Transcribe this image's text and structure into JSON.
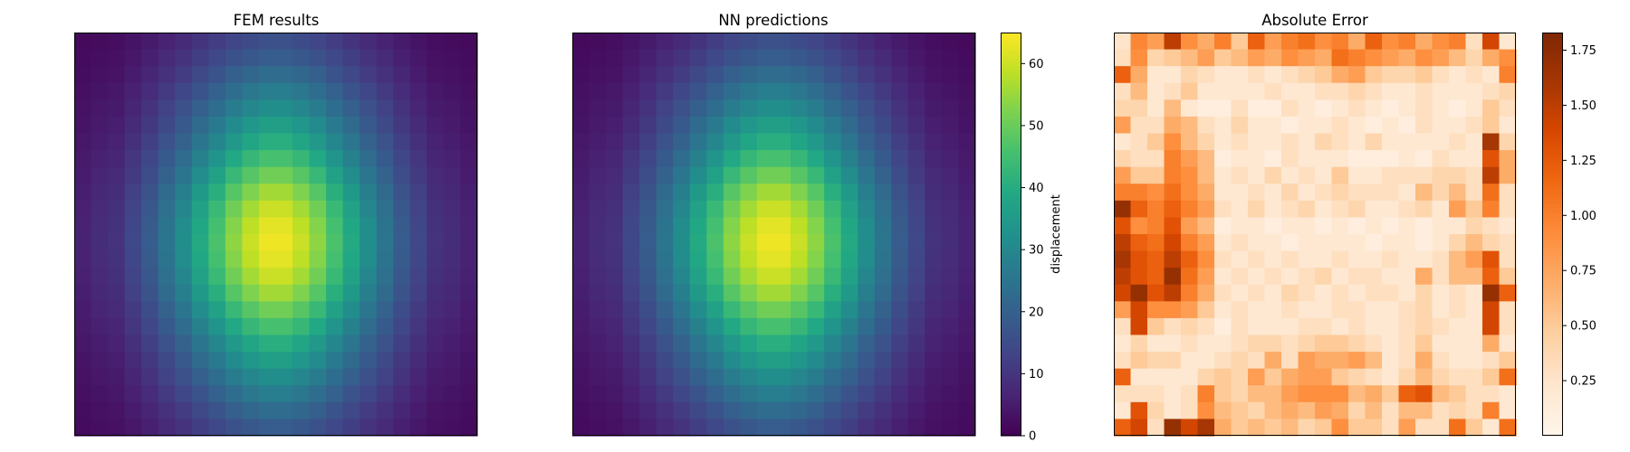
{
  "chart_data": [
    {
      "type": "heatmap",
      "title": "FEM results",
      "grid_size": 24,
      "model": "separable",
      "x_profile": [
        0.1,
        0.13,
        0.15,
        0.22,
        0.3,
        0.4,
        0.5,
        0.62,
        0.73,
        0.85,
        0.94,
        1.0,
        1.0,
        0.94,
        0.85,
        0.73,
        0.62,
        0.5,
        0.4,
        0.3,
        0.22,
        0.15,
        0.13,
        0.1
      ],
      "y_profile": [
        0.25,
        0.3,
        0.36,
        0.43,
        0.5,
        0.57,
        0.64,
        0.72,
        0.8,
        0.88,
        0.94,
        0.98,
        1.0,
        0.98,
        0.94,
        0.88,
        0.8,
        0.72,
        0.64,
        0.57,
        0.5,
        0.43,
        0.36,
        0.3
      ],
      "vmin": 0,
      "vmax": 65,
      "peak_value": 63.5,
      "colormap": "viridis",
      "axes_visible": false
    },
    {
      "type": "heatmap",
      "title": "NN predictions",
      "grid_size": 24,
      "model": "separable",
      "x_profile": [
        0.1,
        0.13,
        0.15,
        0.22,
        0.3,
        0.4,
        0.5,
        0.62,
        0.73,
        0.85,
        0.94,
        1.0,
        1.0,
        0.94,
        0.85,
        0.73,
        0.62,
        0.5,
        0.4,
        0.3,
        0.22,
        0.15,
        0.13,
        0.1
      ],
      "y_profile": [
        0.25,
        0.3,
        0.36,
        0.43,
        0.5,
        0.57,
        0.64,
        0.72,
        0.8,
        0.88,
        0.94,
        0.98,
        1.0,
        0.98,
        0.94,
        0.88,
        0.8,
        0.72,
        0.64,
        0.57,
        0.5,
        0.43,
        0.36,
        0.3
      ],
      "vmin": 0,
      "vmax": 65,
      "peak_value": 63.5,
      "colormap": "viridis",
      "axes_visible": false,
      "colorbar": {
        "label": "displacement",
        "ticks": [
          0,
          10,
          20,
          30,
          40,
          50,
          60
        ],
        "range": [
          0,
          65
        ]
      }
    },
    {
      "type": "heatmap",
      "title": "Absolute Error",
      "grid_size": 24,
      "vmin": 0,
      "vmax": 1.83,
      "colormap": "oranges",
      "axes_visible": false,
      "values": [
        [
          0.25,
          0.95,
          0.8,
          1.5,
          0.9,
          0.7,
          1.0,
          0.5,
          1.2,
          0.8,
          1.0,
          1.1,
          0.9,
          1.0,
          0.7,
          1.2,
          0.9,
          1.0,
          0.7,
          0.9,
          1.0,
          0.3,
          1.4,
          0.2
        ],
        [
          0.3,
          0.9,
          0.4,
          0.5,
          0.6,
          0.8,
          0.5,
          0.6,
          0.8,
          0.7,
          0.9,
          0.8,
          0.7,
          1.1,
          1.0,
          0.9,
          0.8,
          0.7,
          0.9,
          0.8,
          0.6,
          0.4,
          0.7,
          0.9
        ],
        [
          1.2,
          0.7,
          0.2,
          0.2,
          0.4,
          0.3,
          0.2,
          0.2,
          0.3,
          0.2,
          0.3,
          0.4,
          0.5,
          0.7,
          0.8,
          0.5,
          0.4,
          0.4,
          0.5,
          0.3,
          0.2,
          0.3,
          0.2,
          1.0
        ],
        [
          0.3,
          0.6,
          0.2,
          0.3,
          0.5,
          0.2,
          0.2,
          0.2,
          0.2,
          0.3,
          0.2,
          0.2,
          0.3,
          0.3,
          0.4,
          0.3,
          0.2,
          0.2,
          0.3,
          0.2,
          0.2,
          0.2,
          0.3,
          0.4
        ],
        [
          0.4,
          0.4,
          0.2,
          0.6,
          0.2,
          0.1,
          0.1,
          0.3,
          0.1,
          0.1,
          0.3,
          0.2,
          0.1,
          0.2,
          0.3,
          0.2,
          0.1,
          0.2,
          0.3,
          0.2,
          0.1,
          0.2,
          0.5,
          0.3
        ],
        [
          0.8,
          0.3,
          0.3,
          0.7,
          0.6,
          0.3,
          0.2,
          0.4,
          0.2,
          0.2,
          0.1,
          0.2,
          0.2,
          0.3,
          0.2,
          0.1,
          0.2,
          0.1,
          0.3,
          0.2,
          0.2,
          0.3,
          0.5,
          0.2
        ],
        [
          0.2,
          0.3,
          0.5,
          0.9,
          0.6,
          0.4,
          0.2,
          0.3,
          0.2,
          0.2,
          0.3,
          0.2,
          0.4,
          0.3,
          0.2,
          0.4,
          0.2,
          0.2,
          0.2,
          0.2,
          0.3,
          0.2,
          1.6,
          0.4
        ],
        [
          0.4,
          0.3,
          0.3,
          1.0,
          0.8,
          0.6,
          0.1,
          0.2,
          0.2,
          0.1,
          0.3,
          0.2,
          0.2,
          0.2,
          0.1,
          0.1,
          0.1,
          0.2,
          0.1,
          0.3,
          0.2,
          0.2,
          1.3,
          0.7
        ],
        [
          0.8,
          0.5,
          0.5,
          1.0,
          0.9,
          0.6,
          0.2,
          0.3,
          0.2,
          0.4,
          0.2,
          0.3,
          0.2,
          0.5,
          0.2,
          0.2,
          0.3,
          0.3,
          0.3,
          0.4,
          0.4,
          0.3,
          1.5,
          0.7
        ],
        [
          1.0,
          1.0,
          0.9,
          1.1,
          0.9,
          0.7,
          0.2,
          0.2,
          0.3,
          0.2,
          0.4,
          0.2,
          0.3,
          0.4,
          0.3,
          0.3,
          0.3,
          0.2,
          0.6,
          0.4,
          0.6,
          0.3,
          1.1,
          0.3
        ],
        [
          1.7,
          1.2,
          1.0,
          1.2,
          1.0,
          0.8,
          0.3,
          0.2,
          0.4,
          0.2,
          0.3,
          0.4,
          0.2,
          0.3,
          0.4,
          0.2,
          0.2,
          0.3,
          0.4,
          0.2,
          0.8,
          0.5,
          1.0,
          0.3
        ],
        [
          1.3,
          0.9,
          1.0,
          1.3,
          0.8,
          0.6,
          0.1,
          0.2,
          0.2,
          0.1,
          0.2,
          0.2,
          0.1,
          0.2,
          0.1,
          0.2,
          0.1,
          0.2,
          0.1,
          0.2,
          0.2,
          0.4,
          0.3,
          0.2
        ],
        [
          1.5,
          1.2,
          1.1,
          1.4,
          1.0,
          0.8,
          0.2,
          0.3,
          0.2,
          0.2,
          0.1,
          0.2,
          0.2,
          0.2,
          0.2,
          0.1,
          0.2,
          0.2,
          0.1,
          0.2,
          0.4,
          0.6,
          0.4,
          0.3
        ],
        [
          1.6,
          1.3,
          1.2,
          1.5,
          1.2,
          0.9,
          0.3,
          0.2,
          0.3,
          0.2,
          0.3,
          0.2,
          0.2,
          0.3,
          0.2,
          0.2,
          0.3,
          0.2,
          0.2,
          0.3,
          0.6,
          0.8,
          1.3,
          0.3
        ],
        [
          1.5,
          1.3,
          1.2,
          1.7,
          1.1,
          0.8,
          0.2,
          0.3,
          0.2,
          0.3,
          0.2,
          0.3,
          0.4,
          0.2,
          0.3,
          0.3,
          0.2,
          0.2,
          0.7,
          0.3,
          0.6,
          0.6,
          1.2,
          0.5
        ],
        [
          1.4,
          1.7,
          1.3,
          1.5,
          1.0,
          0.7,
          0.3,
          0.2,
          0.3,
          0.2,
          0.4,
          0.3,
          0.2,
          0.3,
          0.2,
          0.3,
          0.3,
          0.2,
          0.4,
          0.2,
          0.3,
          0.2,
          1.7,
          1.2
        ],
        [
          0.8,
          1.4,
          0.9,
          0.9,
          0.8,
          0.5,
          0.2,
          0.3,
          0.2,
          0.2,
          0.3,
          0.2,
          0.2,
          0.3,
          0.3,
          0.2,
          0.2,
          0.3,
          0.4,
          0.2,
          0.3,
          0.2,
          1.4,
          0.3
        ],
        [
          0.3,
          1.4,
          0.5,
          0.3,
          0.4,
          0.3,
          0.1,
          0.3,
          0.2,
          0.2,
          0.2,
          0.3,
          0.3,
          0.2,
          0.3,
          0.2,
          0.2,
          0.3,
          0.4,
          0.3,
          0.2,
          0.2,
          1.4,
          0.3
        ],
        [
          0.2,
          0.4,
          0.2,
          0.2,
          0.3,
          0.2,
          0.2,
          0.3,
          0.4,
          0.4,
          0.3,
          0.4,
          0.5,
          0.5,
          0.4,
          0.3,
          0.2,
          0.3,
          0.5,
          0.2,
          0.2,
          0.2,
          0.7,
          0.2
        ],
        [
          0.3,
          0.5,
          0.4,
          0.4,
          0.2,
          0.2,
          0.3,
          0.4,
          0.3,
          0.7,
          0.3,
          0.8,
          0.7,
          0.7,
          0.8,
          0.6,
          0.2,
          0.3,
          0.7,
          0.3,
          0.2,
          0.2,
          0.3,
          0.5
        ],
        [
          1.2,
          0.2,
          0.2,
          0.2,
          0.2,
          0.4,
          0.5,
          0.4,
          0.8,
          0.5,
          0.7,
          0.8,
          0.8,
          0.5,
          0.4,
          0.3,
          0.2,
          0.4,
          0.6,
          0.4,
          0.3,
          0.3,
          0.5,
          1.1
        ],
        [
          0.3,
          0.3,
          0.3,
          0.2,
          0.3,
          1.0,
          0.5,
          0.4,
          0.6,
          0.6,
          0.8,
          0.9,
          0.9,
          0.9,
          0.6,
          0.7,
          0.5,
          1.2,
          1.3,
          0.6,
          0.5,
          0.3,
          0.3,
          0.2
        ],
        [
          0.2,
          1.3,
          0.4,
          0.2,
          0.3,
          0.9,
          0.6,
          0.5,
          0.4,
          0.6,
          0.7,
          0.6,
          0.8,
          0.7,
          0.4,
          0.6,
          0.3,
          0.6,
          0.6,
          0.3,
          0.4,
          0.3,
          1.0,
          0.2
        ],
        [
          1.2,
          1.4,
          0.3,
          1.7,
          1.4,
          1.6,
          0.7,
          0.5,
          0.6,
          0.5,
          0.6,
          0.4,
          0.5,
          0.9,
          0.5,
          0.5,
          0.3,
          0.8,
          0.3,
          0.3,
          1.1,
          0.5,
          0.2,
          1.1
        ]
      ],
      "colorbar": {
        "label": "",
        "ticks": [
          0.25,
          0.5,
          0.75,
          1.0,
          1.25,
          1.5,
          1.75
        ],
        "tick_labels": [
          "0.25",
          "0.50",
          "0.75",
          "1.00",
          "1.25",
          "1.50",
          "1.75"
        ],
        "range": [
          0,
          1.83
        ]
      }
    }
  ]
}
